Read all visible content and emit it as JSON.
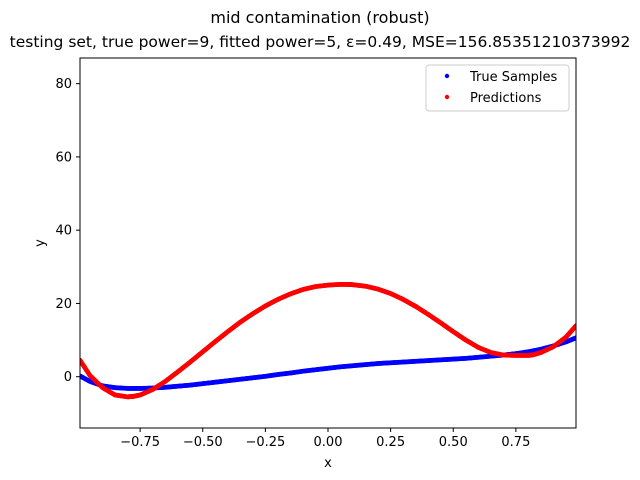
{
  "chart_data": {
    "type": "scatter",
    "title": "mid contamination (robust)",
    "subtitle": "testing set, true power=9, fitted power=5, ε=0.49, MSE=156.85351210373992",
    "xlabel": "x",
    "ylabel": "y",
    "xlim": [
      -0.99,
      0.99
    ],
    "ylim": [
      -14,
      87
    ],
    "xticks": [
      -0.75,
      -0.5,
      -0.25,
      0.0,
      0.25,
      0.5,
      0.75
    ],
    "xtick_labels": [
      "−0.75",
      "−0.50",
      "−0.25",
      "0.00",
      "0.25",
      "0.50",
      "0.75"
    ],
    "yticks": [
      0,
      20,
      40,
      60,
      80
    ],
    "ytick_labels": [
      "0",
      "20",
      "40",
      "60",
      "80"
    ],
    "grid": false,
    "legend_position": "top-right",
    "series": [
      {
        "name": "True Samples",
        "color": "#0000ff",
        "x": [
          -0.99,
          -0.95,
          -0.9,
          -0.85,
          -0.8,
          -0.75,
          -0.7,
          -0.65,
          -0.6,
          -0.55,
          -0.5,
          -0.45,
          -0.4,
          -0.35,
          -0.3,
          -0.25,
          -0.2,
          -0.15,
          -0.1,
          -0.05,
          0.0,
          0.05,
          0.1,
          0.15,
          0.2,
          0.25,
          0.3,
          0.35,
          0.4,
          0.45,
          0.5,
          0.55,
          0.6,
          0.65,
          0.7,
          0.75,
          0.8,
          0.85,
          0.9,
          0.95,
          0.99
        ],
        "y": [
          0.2,
          -1.3,
          -2.5,
          -3.0,
          -3.2,
          -3.2,
          -3.1,
          -2.9,
          -2.6,
          -2.3,
          -1.9,
          -1.5,
          -1.1,
          -0.7,
          -0.3,
          0.1,
          0.6,
          1.0,
          1.5,
          1.9,
          2.3,
          2.7,
          3.0,
          3.3,
          3.6,
          3.8,
          4.0,
          4.2,
          4.4,
          4.6,
          4.8,
          5.0,
          5.3,
          5.6,
          5.9,
          6.3,
          6.8,
          7.5,
          8.4,
          9.5,
          10.6
        ]
      },
      {
        "name": "Predictions",
        "color": "#ff0000",
        "x": [
          -0.99,
          -0.95,
          -0.9,
          -0.85,
          -0.8,
          -0.78,
          -0.75,
          -0.7,
          -0.65,
          -0.6,
          -0.55,
          -0.5,
          -0.45,
          -0.4,
          -0.35,
          -0.3,
          -0.25,
          -0.2,
          -0.15,
          -0.1,
          -0.05,
          0.0,
          0.05,
          0.08,
          0.1,
          0.15,
          0.2,
          0.25,
          0.3,
          0.35,
          0.4,
          0.45,
          0.5,
          0.55,
          0.6,
          0.65,
          0.7,
          0.75,
          0.8,
          0.82,
          0.85,
          0.9,
          0.95,
          0.99
        ],
        "y": [
          4.5,
          0.3,
          -3.0,
          -5.0,
          -5.5,
          -5.4,
          -5.0,
          -3.5,
          -1.3,
          1.3,
          4.0,
          6.8,
          9.6,
          12.3,
          14.9,
          17.2,
          19.3,
          21.1,
          22.6,
          23.8,
          24.6,
          25.0,
          25.2,
          25.2,
          25.1,
          24.7,
          23.9,
          22.7,
          21.1,
          19.2,
          17.0,
          14.7,
          12.3,
          10.0,
          8.0,
          6.6,
          5.9,
          5.8,
          5.8,
          6.0,
          6.6,
          8.2,
          10.8,
          13.9
        ]
      }
    ]
  }
}
